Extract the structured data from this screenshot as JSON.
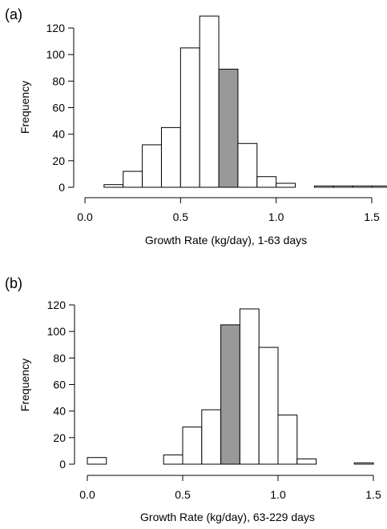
{
  "chart_data": [
    {
      "type": "bar",
      "panel_label": "(a)",
      "xlabel": "Growth Rate (kg/day), 1-63 days",
      "ylabel": "Frequency",
      "xlim": [
        0.0,
        1.55
      ],
      "ylim": [
        0,
        130
      ],
      "xticks": [
        "0.0",
        "0.5",
        "1.0",
        "1.5"
      ],
      "yticks": [
        "0",
        "20",
        "40",
        "60",
        "80",
        "100",
        "120"
      ],
      "bin_width": 0.1,
      "bins": [
        {
          "x0": 0.1,
          "x1": 0.2,
          "count": 2
        },
        {
          "x0": 0.2,
          "x1": 0.3,
          "count": 12
        },
        {
          "x0": 0.3,
          "x1": 0.4,
          "count": 32
        },
        {
          "x0": 0.4,
          "x1": 0.5,
          "count": 45
        },
        {
          "x0": 0.5,
          "x1": 0.6,
          "count": 105
        },
        {
          "x0": 0.6,
          "x1": 0.7,
          "count": 129
        },
        {
          "x0": 0.7,
          "x1": 0.8,
          "count": 89,
          "highlight": true
        },
        {
          "x0": 0.8,
          "x1": 0.9,
          "count": 33
        },
        {
          "x0": 0.9,
          "x1": 1.0,
          "count": 8
        },
        {
          "x0": 1.0,
          "x1": 1.1,
          "count": 3
        },
        {
          "x0": 1.1,
          "x1": 1.2,
          "count": 0
        },
        {
          "x0": 1.2,
          "x1": 1.3,
          "count": 1
        },
        {
          "x0": 1.3,
          "x1": 1.4,
          "count": 1
        },
        {
          "x0": 1.4,
          "x1": 1.5,
          "count": 1
        },
        {
          "x0": 1.5,
          "x1": 1.6,
          "count": 1
        }
      ],
      "colors": {
        "bar": "#ffffff",
        "highlight": "#999999",
        "stroke": "#000000"
      }
    },
    {
      "type": "bar",
      "panel_label": "(b)",
      "xlabel": "Growth Rate (kg/day), 63-229 days",
      "ylabel": "Frequency",
      "xlim": [
        0.0,
        1.5
      ],
      "ylim": [
        0,
        120
      ],
      "xticks": [
        "0.0",
        "0.5",
        "1.0",
        "1.5"
      ],
      "yticks": [
        "0",
        "20",
        "40",
        "60",
        "80",
        "100",
        "120"
      ],
      "bin_width": 0.1,
      "bins": [
        {
          "x0": 0.0,
          "x1": 0.1,
          "count": 5
        },
        {
          "x0": 0.1,
          "x1": 0.2,
          "count": 0
        },
        {
          "x0": 0.2,
          "x1": 0.3,
          "count": 0
        },
        {
          "x0": 0.3,
          "x1": 0.4,
          "count": 0
        },
        {
          "x0": 0.4,
          "x1": 0.5,
          "count": 7
        },
        {
          "x0": 0.5,
          "x1": 0.6,
          "count": 28
        },
        {
          "x0": 0.6,
          "x1": 0.7,
          "count": 41
        },
        {
          "x0": 0.7,
          "x1": 0.8,
          "count": 105,
          "highlight": true
        },
        {
          "x0": 0.8,
          "x1": 0.9,
          "count": 117
        },
        {
          "x0": 0.9,
          "x1": 1.0,
          "count": 88
        },
        {
          "x0": 1.0,
          "x1": 1.1,
          "count": 37
        },
        {
          "x0": 1.1,
          "x1": 1.2,
          "count": 4
        },
        {
          "x0": 1.2,
          "x1": 1.3,
          "count": 0
        },
        {
          "x0": 1.3,
          "x1": 1.4,
          "count": 0
        },
        {
          "x0": 1.4,
          "x1": 1.5,
          "count": 1
        }
      ],
      "colors": {
        "bar": "#ffffff",
        "highlight": "#999999",
        "stroke": "#000000"
      }
    }
  ]
}
